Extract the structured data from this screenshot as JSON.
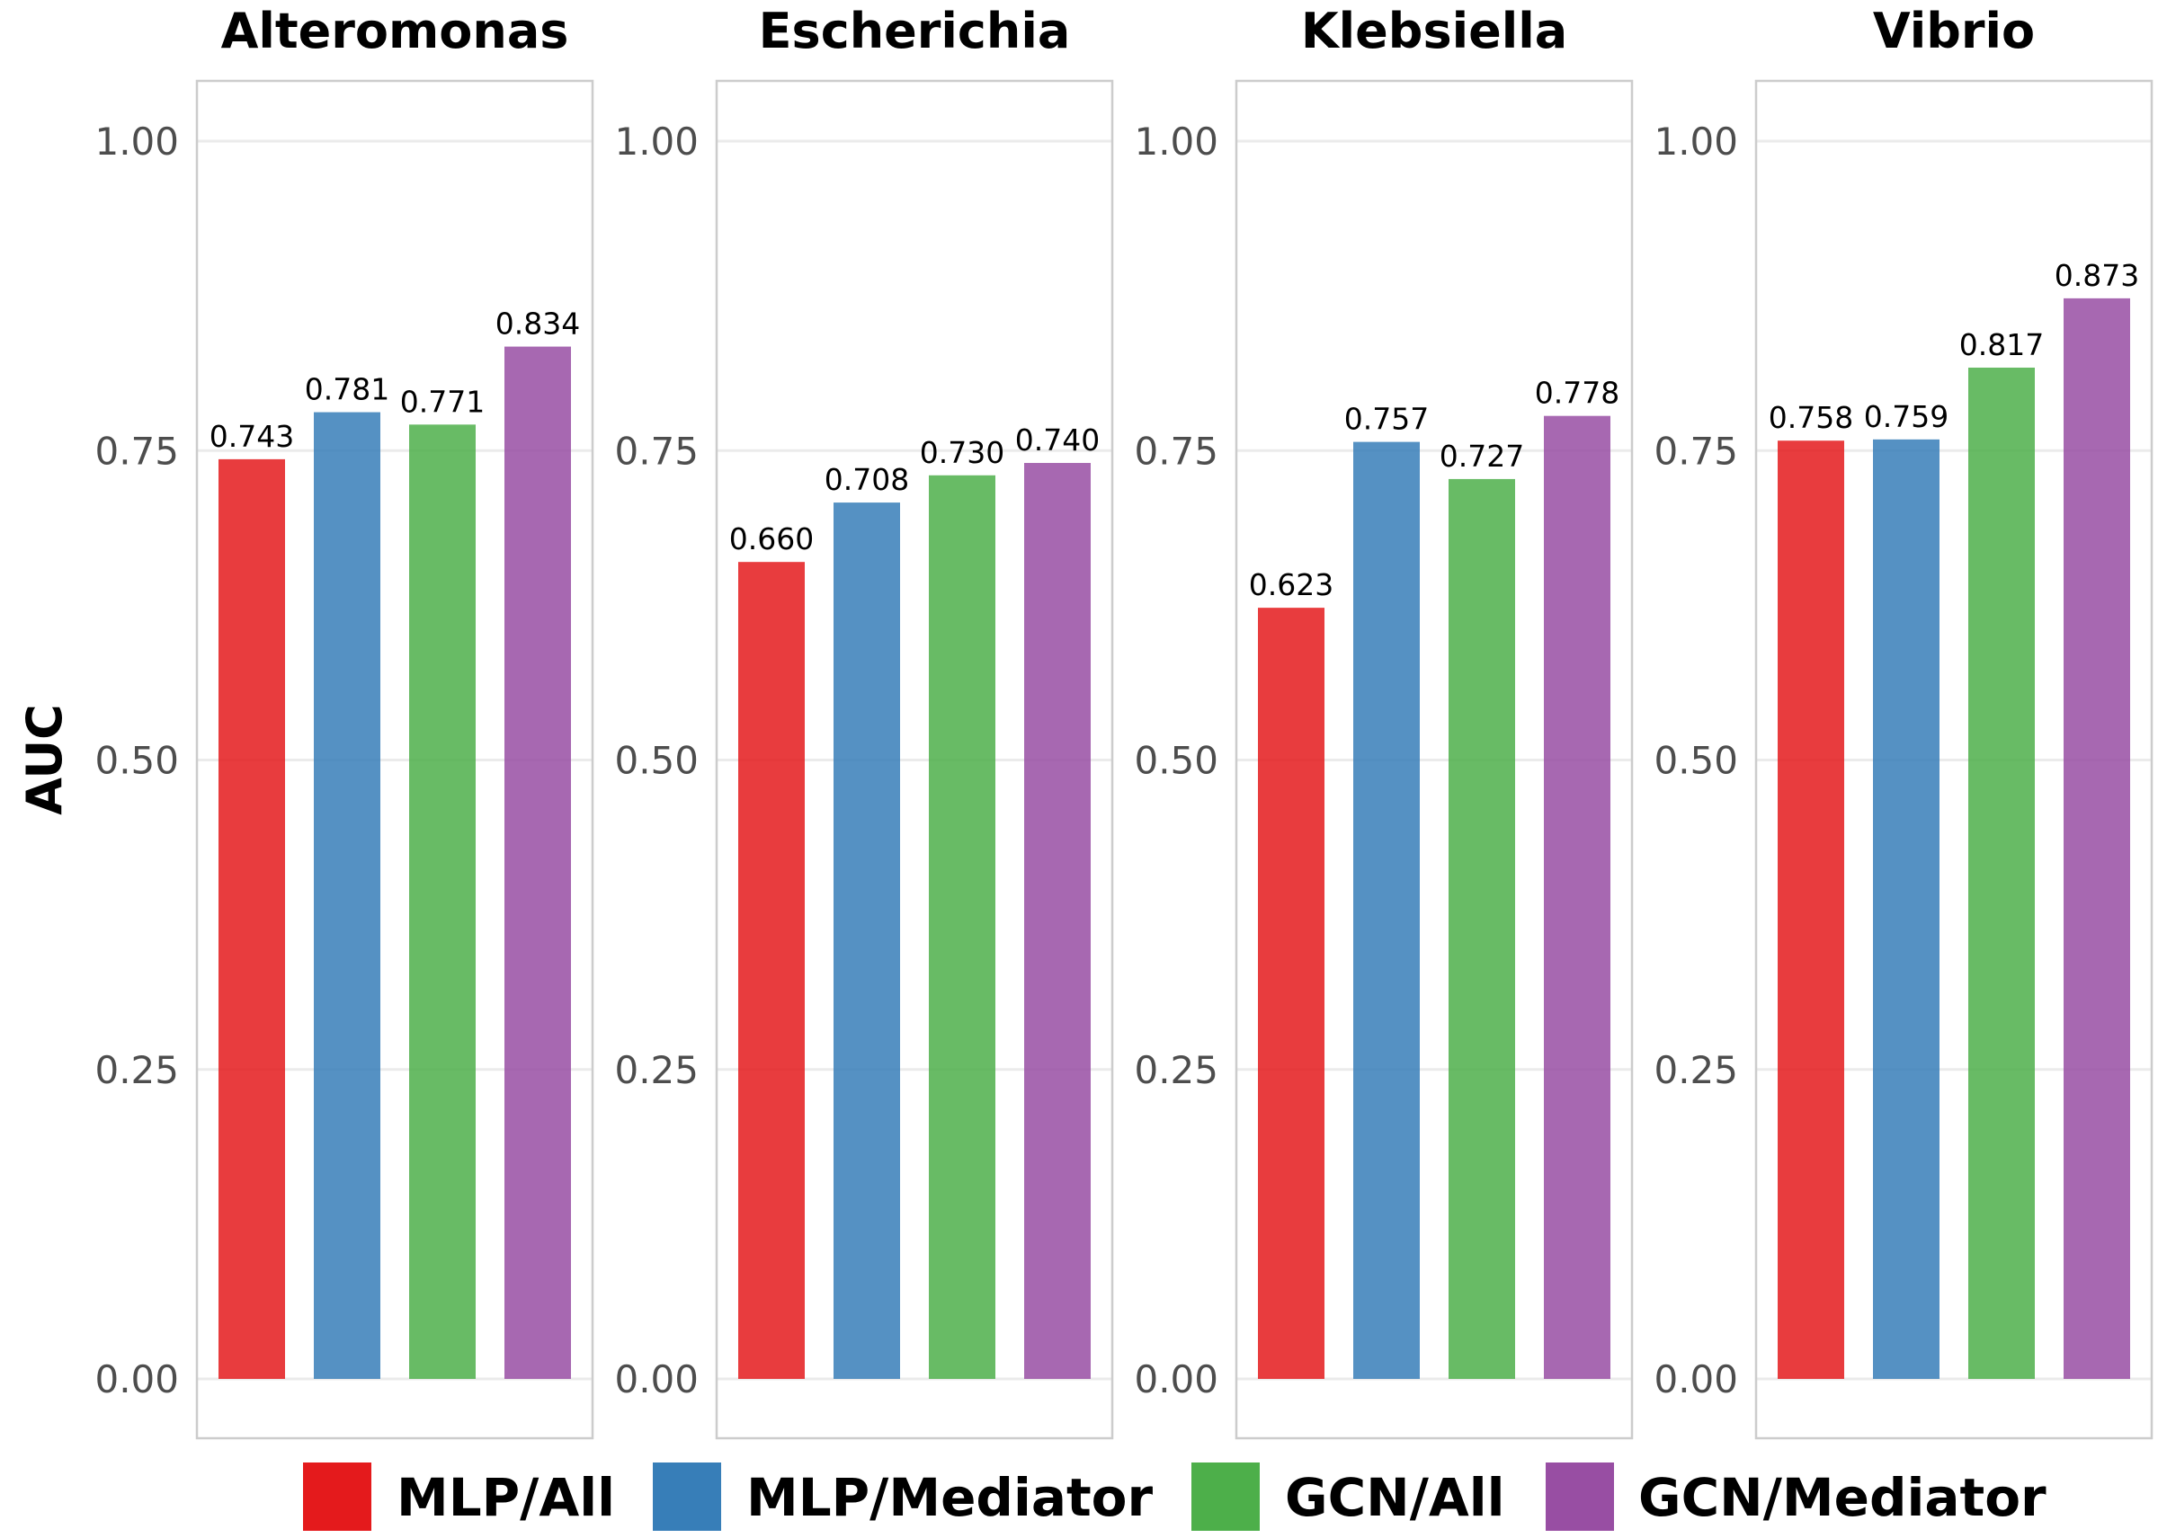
{
  "chart_data": {
    "type": "bar",
    "ylabel": "AUC",
    "ylim": [
      0,
      1.05
    ],
    "yticks": [
      "0.00",
      "0.25",
      "0.50",
      "0.75",
      "1.00"
    ],
    "ytick_values": [
      0,
      0.25,
      0.5,
      0.75,
      1.0
    ],
    "grid": true,
    "legend_position": "bottom",
    "series": [
      {
        "name": "MLP/All",
        "color": "#e41a1c"
      },
      {
        "name": "MLP/Mediator",
        "color": "#377eb8"
      },
      {
        "name": "GCN/All",
        "color": "#4daf4a"
      },
      {
        "name": "GCN/Mediator",
        "color": "#984ea3"
      }
    ],
    "facets": [
      {
        "title": "Alteromonas",
        "values": [
          0.743,
          0.781,
          0.771,
          0.834
        ],
        "labels": [
          "0.743",
          "0.781",
          "0.771",
          "0.834"
        ]
      },
      {
        "title": "Escherichia",
        "values": [
          0.66,
          0.708,
          0.73,
          0.74
        ],
        "labels": [
          "0.660",
          "0.708",
          "0.730",
          "0.740"
        ]
      },
      {
        "title": "Klebsiella",
        "values": [
          0.623,
          0.757,
          0.727,
          0.778
        ],
        "labels": [
          "0.623",
          "0.757",
          "0.727",
          "0.778"
        ]
      },
      {
        "title": "Vibrio",
        "values": [
          0.758,
          0.759,
          0.817,
          0.873
        ],
        "labels": [
          "0.758",
          "0.759",
          "0.817",
          "0.873"
        ]
      }
    ]
  }
}
